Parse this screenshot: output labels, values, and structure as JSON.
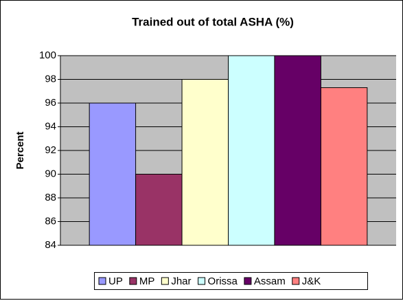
{
  "chart_data": {
    "type": "bar",
    "title": "Trained out of total ASHA (%)",
    "y_label": "Percent",
    "categories": [
      null
    ],
    "series": [
      {
        "name": "UP",
        "color": "#9999ff",
        "values": [
          96
        ]
      },
      {
        "name": "MP",
        "color": "#993366",
        "values": [
          90
        ]
      },
      {
        "name": "Jhar",
        "color": "#ffffcc",
        "values": [
          98
        ]
      },
      {
        "name": "Orissa",
        "color": "#ccffff",
        "values": [
          100
        ]
      },
      {
        "name": "Assam",
        "color": "#660066",
        "values": [
          100
        ]
      },
      {
        "name": "J&K",
        "color": "#ff8080",
        "values": [
          97.3
        ]
      }
    ],
    "ylim": [
      84,
      100
    ],
    "yticks": [
      84,
      86,
      88,
      90,
      92,
      94,
      96,
      98,
      100
    ],
    "grid": true,
    "legend": "bottom"
  }
}
